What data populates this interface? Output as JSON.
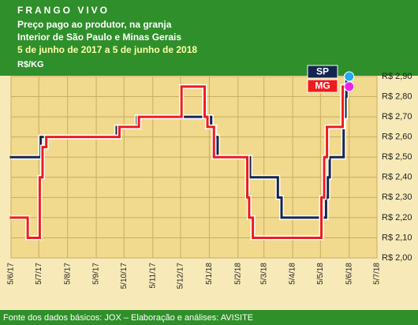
{
  "chart_data": {
    "type": "step",
    "title": "FRANGO VIVO",
    "subtitle": [
      "Preço pago ao produtor, na granja",
      "Interior de São Paulo e Minas Gerais",
      "5 de junho de 2017 a 5 de junho de 2018"
    ],
    "y_label": "R$/KG",
    "source": "Fonte dos dados básicos: JOX – Elaboração e análises: AVISITE",
    "xlim": [
      "5/6/17",
      "5/7/18"
    ],
    "xticks": [
      "5/6/17",
      "5/7/17",
      "5/8/17",
      "5/9/17",
      "5/10/17",
      "5/11/17",
      "5/12/17",
      "5/1/18",
      "5/2/18",
      "5/3/18",
      "5/4/18",
      "5/5/18",
      "5/6/18",
      "5/7/18"
    ],
    "ylim": [
      2.0,
      2.9
    ],
    "yticks": [
      {
        "value": 2.0,
        "label": "R$ 2,00"
      },
      {
        "value": 2.1,
        "label": "R$ 2,10"
      },
      {
        "value": 2.2,
        "label": "R$ 2,20"
      },
      {
        "value": 2.3,
        "label": "R$ 2,30"
      },
      {
        "value": 2.4,
        "label": "R$ 2,40"
      },
      {
        "value": 2.5,
        "label": "R$ 2,50"
      },
      {
        "value": 2.6,
        "label": "R$ 2,60"
      },
      {
        "value": 2.7,
        "label": "R$ 2,70"
      },
      {
        "value": 2.8,
        "label": "R$ 2,80"
      },
      {
        "value": 2.9,
        "label": "R$ 2,90"
      }
    ],
    "grid": true,
    "legend": "top-right",
    "series": [
      {
        "name": "SP",
        "color": "#14264f",
        "marker_color": "#22aaee",
        "x": [
          "5/6/17",
          "7/7/17",
          "27/9/17",
          "19/10/17",
          "7/1/18",
          "11/1/18",
          "14/1/18",
          "18/2/18",
          "20/3/18",
          "24/3/18",
          "11/5/18",
          "13/5/18",
          "15/5/18",
          "30/5/18",
          "1/6/18",
          "2/6/18",
          "5/6/18"
        ],
        "values": [
          2.5,
          2.6,
          2.65,
          2.7,
          2.65,
          2.6,
          2.5,
          2.4,
          2.3,
          2.2,
          2.3,
          2.4,
          2.5,
          2.7,
          2.8,
          2.9,
          2.9
        ]
      },
      {
        "name": "MG",
        "color": "#ee1c1c",
        "marker_color": "#ee22ee",
        "x": [
          "5/6/17",
          "23/6/17",
          "6/7/17",
          "9/7/17",
          "13/7/17",
          "30/9/17",
          "21/10/17",
          "6/12/17",
          "31/12/17",
          "3/1/18",
          "10/1/18",
          "15/2/18",
          "17/2/18",
          "21/2/18",
          "6/5/18",
          "9/5/18",
          "12/5/18",
          "29/5/18",
          "5/6/18"
        ],
        "values": [
          2.2,
          2.1,
          2.4,
          2.55,
          2.6,
          2.65,
          2.7,
          2.85,
          2.7,
          2.65,
          2.5,
          2.3,
          2.2,
          2.1,
          2.3,
          2.5,
          2.65,
          2.85,
          2.85
        ]
      }
    ]
  }
}
